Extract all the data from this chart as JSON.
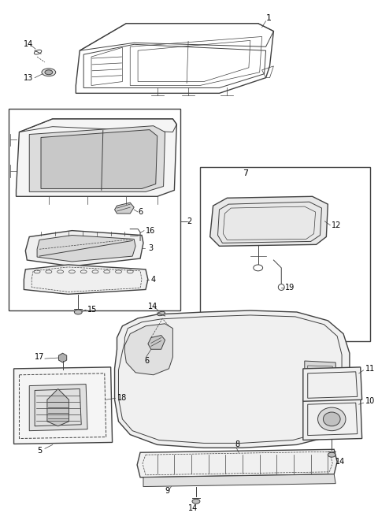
{
  "bg_color": "#ffffff",
  "line_color": "#404040",
  "fig_width": 4.8,
  "fig_height": 6.65,
  "dpi": 100
}
